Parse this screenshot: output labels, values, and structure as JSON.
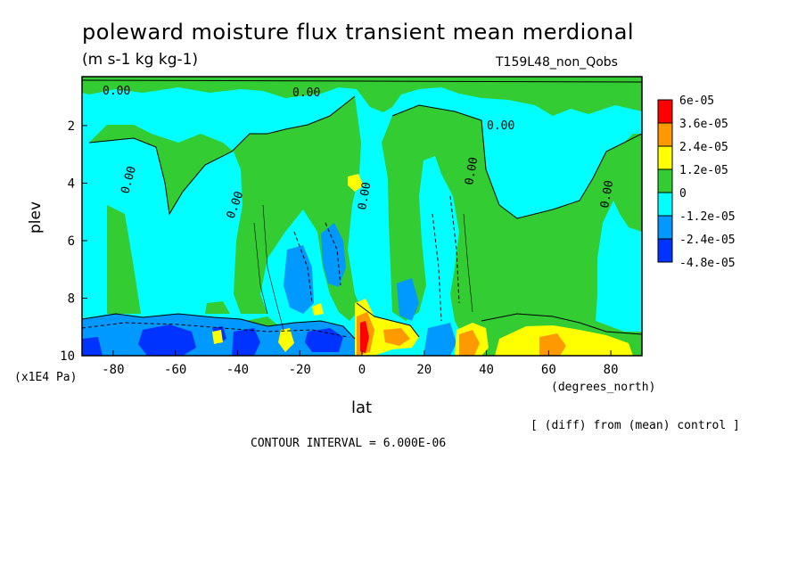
{
  "chart_data": {
    "type": "heatmap",
    "title": "poleward moisture flux transient mean merdional",
    "units": "(m s-1 kg kg-1)",
    "run_label": "T159L48_non_Qobs",
    "xlabel": "lat",
    "xunit": "(degrees_north)",
    "ylabel": "plev",
    "yunit": "(x1E4 Pa)",
    "xlim": [
      -90,
      90
    ],
    "ylim": [
      10,
      0.3
    ],
    "x_ticks": [
      "-80",
      "-60",
      "-40",
      "-20",
      "0",
      "20",
      "40",
      "60",
      "80"
    ],
    "y_ticks": [
      "2",
      "4",
      "6",
      "8",
      "10"
    ],
    "colorbar": {
      "labels": [
        "6e-05",
        "3.6e-05",
        "2.4e-05",
        "1.2e-05",
        "0",
        "-1.2e-05",
        "-2.4e-05",
        "-4.8e-05"
      ],
      "colors": [
        "#ff0000",
        "#ff9900",
        "#ffff00",
        "#33cc33",
        "#00ffff",
        "#0099ff",
        "#0033ff"
      ]
    },
    "contour_label": "0.00",
    "note": "[ (diff) from (mean) control ]",
    "contour_interval": "CONTOUR INTERVAL = 6.000E-06"
  }
}
